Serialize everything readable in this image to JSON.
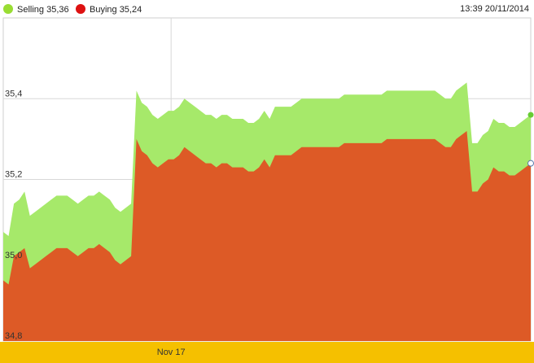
{
  "legend": [
    {
      "label": "Selling 35,36",
      "color": "#99dd33"
    },
    {
      "label": "Buying 35,24",
      "color": "#dd1111"
    }
  ],
  "timestamp": "13:39 20/11/2014",
  "colors": {
    "selling_fill": "#a6e96a",
    "buying_fill": "#dd5a26",
    "grid": "#d8d8d8",
    "axis_band": "#f5c000",
    "selling_marker": "#66cc33"
  },
  "chart_data": {
    "type": "area",
    "ylim": [
      34.8,
      35.6
    ],
    "yticks": [
      {
        "value": 34.8,
        "label": "34,8"
      },
      {
        "value": 35.0,
        "label": "35,0"
      },
      {
        "value": 35.2,
        "label": "35,2"
      },
      {
        "value": 35.4,
        "label": "35,4"
      }
    ],
    "xticks": [
      {
        "index": 31.5,
        "label": "Nov 17"
      }
    ],
    "grid": true,
    "n_points": 100,
    "series": [
      {
        "name": "Selling",
        "values": [
          35.07,
          35.06,
          35.14,
          35.15,
          35.17,
          35.11,
          35.12,
          35.13,
          35.14,
          35.15,
          35.16,
          35.16,
          35.16,
          35.15,
          35.14,
          35.15,
          35.16,
          35.16,
          35.17,
          35.16,
          35.15,
          35.13,
          35.12,
          35.13,
          35.14,
          35.42,
          35.39,
          35.38,
          35.36,
          35.35,
          35.36,
          35.37,
          35.37,
          35.38,
          35.4,
          35.39,
          35.38,
          35.37,
          35.36,
          35.36,
          35.35,
          35.36,
          35.36,
          35.35,
          35.35,
          35.35,
          35.34,
          35.34,
          35.35,
          35.37,
          35.35,
          35.38,
          35.38,
          35.38,
          35.38,
          35.39,
          35.4,
          35.4,
          35.4,
          35.4,
          35.4,
          35.4,
          35.4,
          35.4,
          35.41,
          35.41,
          35.41,
          35.41,
          35.41,
          35.41,
          35.41,
          35.41,
          35.42,
          35.42,
          35.42,
          35.42,
          35.42,
          35.42,
          35.42,
          35.42,
          35.42,
          35.42,
          35.41,
          35.4,
          35.4,
          35.42,
          35.43,
          35.44,
          35.29,
          35.29,
          35.31,
          35.32,
          35.35,
          35.34,
          35.34,
          35.33,
          35.33,
          35.34,
          35.35,
          35.36
        ]
      },
      {
        "name": "Buying",
        "values": [
          34.95,
          34.94,
          35.01,
          35.02,
          35.03,
          34.98,
          34.99,
          35.0,
          35.01,
          35.02,
          35.03,
          35.03,
          35.03,
          35.02,
          35.01,
          35.02,
          35.03,
          35.03,
          35.04,
          35.03,
          35.02,
          35.0,
          34.99,
          35.0,
          35.01,
          35.3,
          35.27,
          35.26,
          35.24,
          35.23,
          35.24,
          35.25,
          35.25,
          35.26,
          35.28,
          35.27,
          35.26,
          35.25,
          35.24,
          35.24,
          35.23,
          35.24,
          35.24,
          35.23,
          35.23,
          35.23,
          35.22,
          35.22,
          35.23,
          35.25,
          35.23,
          35.26,
          35.26,
          35.26,
          35.26,
          35.27,
          35.28,
          35.28,
          35.28,
          35.28,
          35.28,
          35.28,
          35.28,
          35.28,
          35.29,
          35.29,
          35.29,
          35.29,
          35.29,
          35.29,
          35.29,
          35.29,
          35.3,
          35.3,
          35.3,
          35.3,
          35.3,
          35.3,
          35.3,
          35.3,
          35.3,
          35.3,
          35.29,
          35.28,
          35.28,
          35.3,
          35.31,
          35.32,
          35.17,
          35.17,
          35.19,
          35.2,
          35.23,
          35.22,
          35.22,
          35.21,
          35.21,
          35.22,
          35.23,
          35.24
        ]
      }
    ]
  }
}
